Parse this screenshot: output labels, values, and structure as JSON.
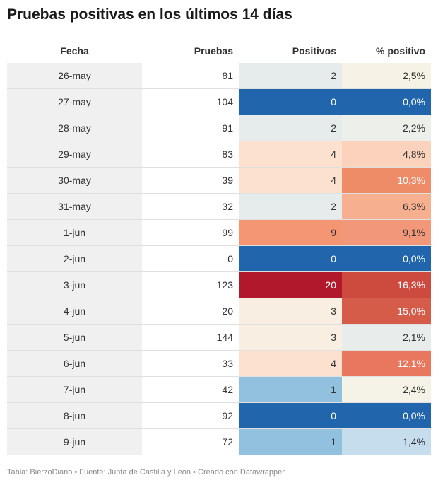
{
  "title": "Pruebas positivas en los últimos 14 días",
  "footer": "Tabla: BierzoDiario • Fuente: Junta de Castilla y León • Creado con Datawrapper",
  "chart_data": {
    "type": "table",
    "columns": [
      "Fecha",
      "Pruebas",
      "Positivos",
      "% positivo"
    ],
    "rows": [
      {
        "fecha": "26-may",
        "pruebas": "81",
        "positivos": "2",
        "pct": "2,5%",
        "pos_color": "#e6ecec",
        "pct_color": "#f6f2e6",
        "pos_dark": false,
        "pct_dark": false
      },
      {
        "fecha": "27-may",
        "pruebas": "104",
        "positivos": "0",
        "pct": "0,0%",
        "pos_color": "#2166ac",
        "pct_color": "#2166ac",
        "pos_dark": true,
        "pct_dark": true
      },
      {
        "fecha": "28-may",
        "pruebas": "91",
        "positivos": "2",
        "pct": "2,2%",
        "pos_color": "#e6ecec",
        "pct_color": "#ecefea",
        "pos_dark": false,
        "pct_dark": false
      },
      {
        "fecha": "29-may",
        "pruebas": "83",
        "positivos": "4",
        "pct": "4,8%",
        "pos_color": "#fde1cf",
        "pct_color": "#fbd3bc",
        "pos_dark": false,
        "pct_dark": false
      },
      {
        "fecha": "30-may",
        "pruebas": "39",
        "positivos": "4",
        "pct": "10,3%",
        "pos_color": "#fde1cf",
        "pct_color": "#ee8c68",
        "pos_dark": false,
        "pct_dark": true
      },
      {
        "fecha": "31-may",
        "pruebas": "32",
        "positivos": "2",
        "pct": "6,3%",
        "pos_color": "#e6ecec",
        "pct_color": "#f6b08f",
        "pos_dark": false,
        "pct_dark": false
      },
      {
        "fecha": "1-jun",
        "pruebas": "99",
        "positivos": "9",
        "pct": "9,1%",
        "pos_color": "#f49573",
        "pct_color": "#f2977a",
        "pos_dark": false,
        "pct_dark": false
      },
      {
        "fecha": "2-jun",
        "pruebas": "0",
        "positivos": "0",
        "pct": "0,0%",
        "pos_color": "#2166ac",
        "pct_color": "#2166ac",
        "pos_dark": true,
        "pct_dark": true
      },
      {
        "fecha": "3-jun",
        "pruebas": "123",
        "positivos": "20",
        "pct": "16,3%",
        "pos_color": "#b2182b",
        "pct_color": "#cd4a3f",
        "pos_dark": true,
        "pct_dark": true
      },
      {
        "fecha": "4-jun",
        "pruebas": "20",
        "positivos": "3",
        "pct": "15,0%",
        "pos_color": "#f9eee2",
        "pct_color": "#d65c4a",
        "pos_dark": false,
        "pct_dark": true
      },
      {
        "fecha": "5-jun",
        "pruebas": "144",
        "positivos": "3",
        "pct": "2,1%",
        "pos_color": "#f9eee2",
        "pct_color": "#e8edec",
        "pos_dark": false,
        "pct_dark": false
      },
      {
        "fecha": "6-jun",
        "pruebas": "33",
        "positivos": "4",
        "pct": "12,1%",
        "pos_color": "#fde1cf",
        "pct_color": "#e8775e",
        "pos_dark": false,
        "pct_dark": true
      },
      {
        "fecha": "7-jun",
        "pruebas": "42",
        "positivos": "1",
        "pct": "2,4%",
        "pos_color": "#92c0df",
        "pct_color": "#f5f3e7",
        "pos_dark": false,
        "pct_dark": false
      },
      {
        "fecha": "8-jun",
        "pruebas": "92",
        "positivos": "0",
        "pct": "0,0%",
        "pos_color": "#2166ac",
        "pct_color": "#2166ac",
        "pos_dark": true,
        "pct_dark": true
      },
      {
        "fecha": "9-jun",
        "pruebas": "72",
        "positivos": "1",
        "pct": "1,4%",
        "pos_color": "#92c0df",
        "pct_color": "#c6ddee",
        "pos_dark": false,
        "pct_dark": false
      }
    ]
  }
}
